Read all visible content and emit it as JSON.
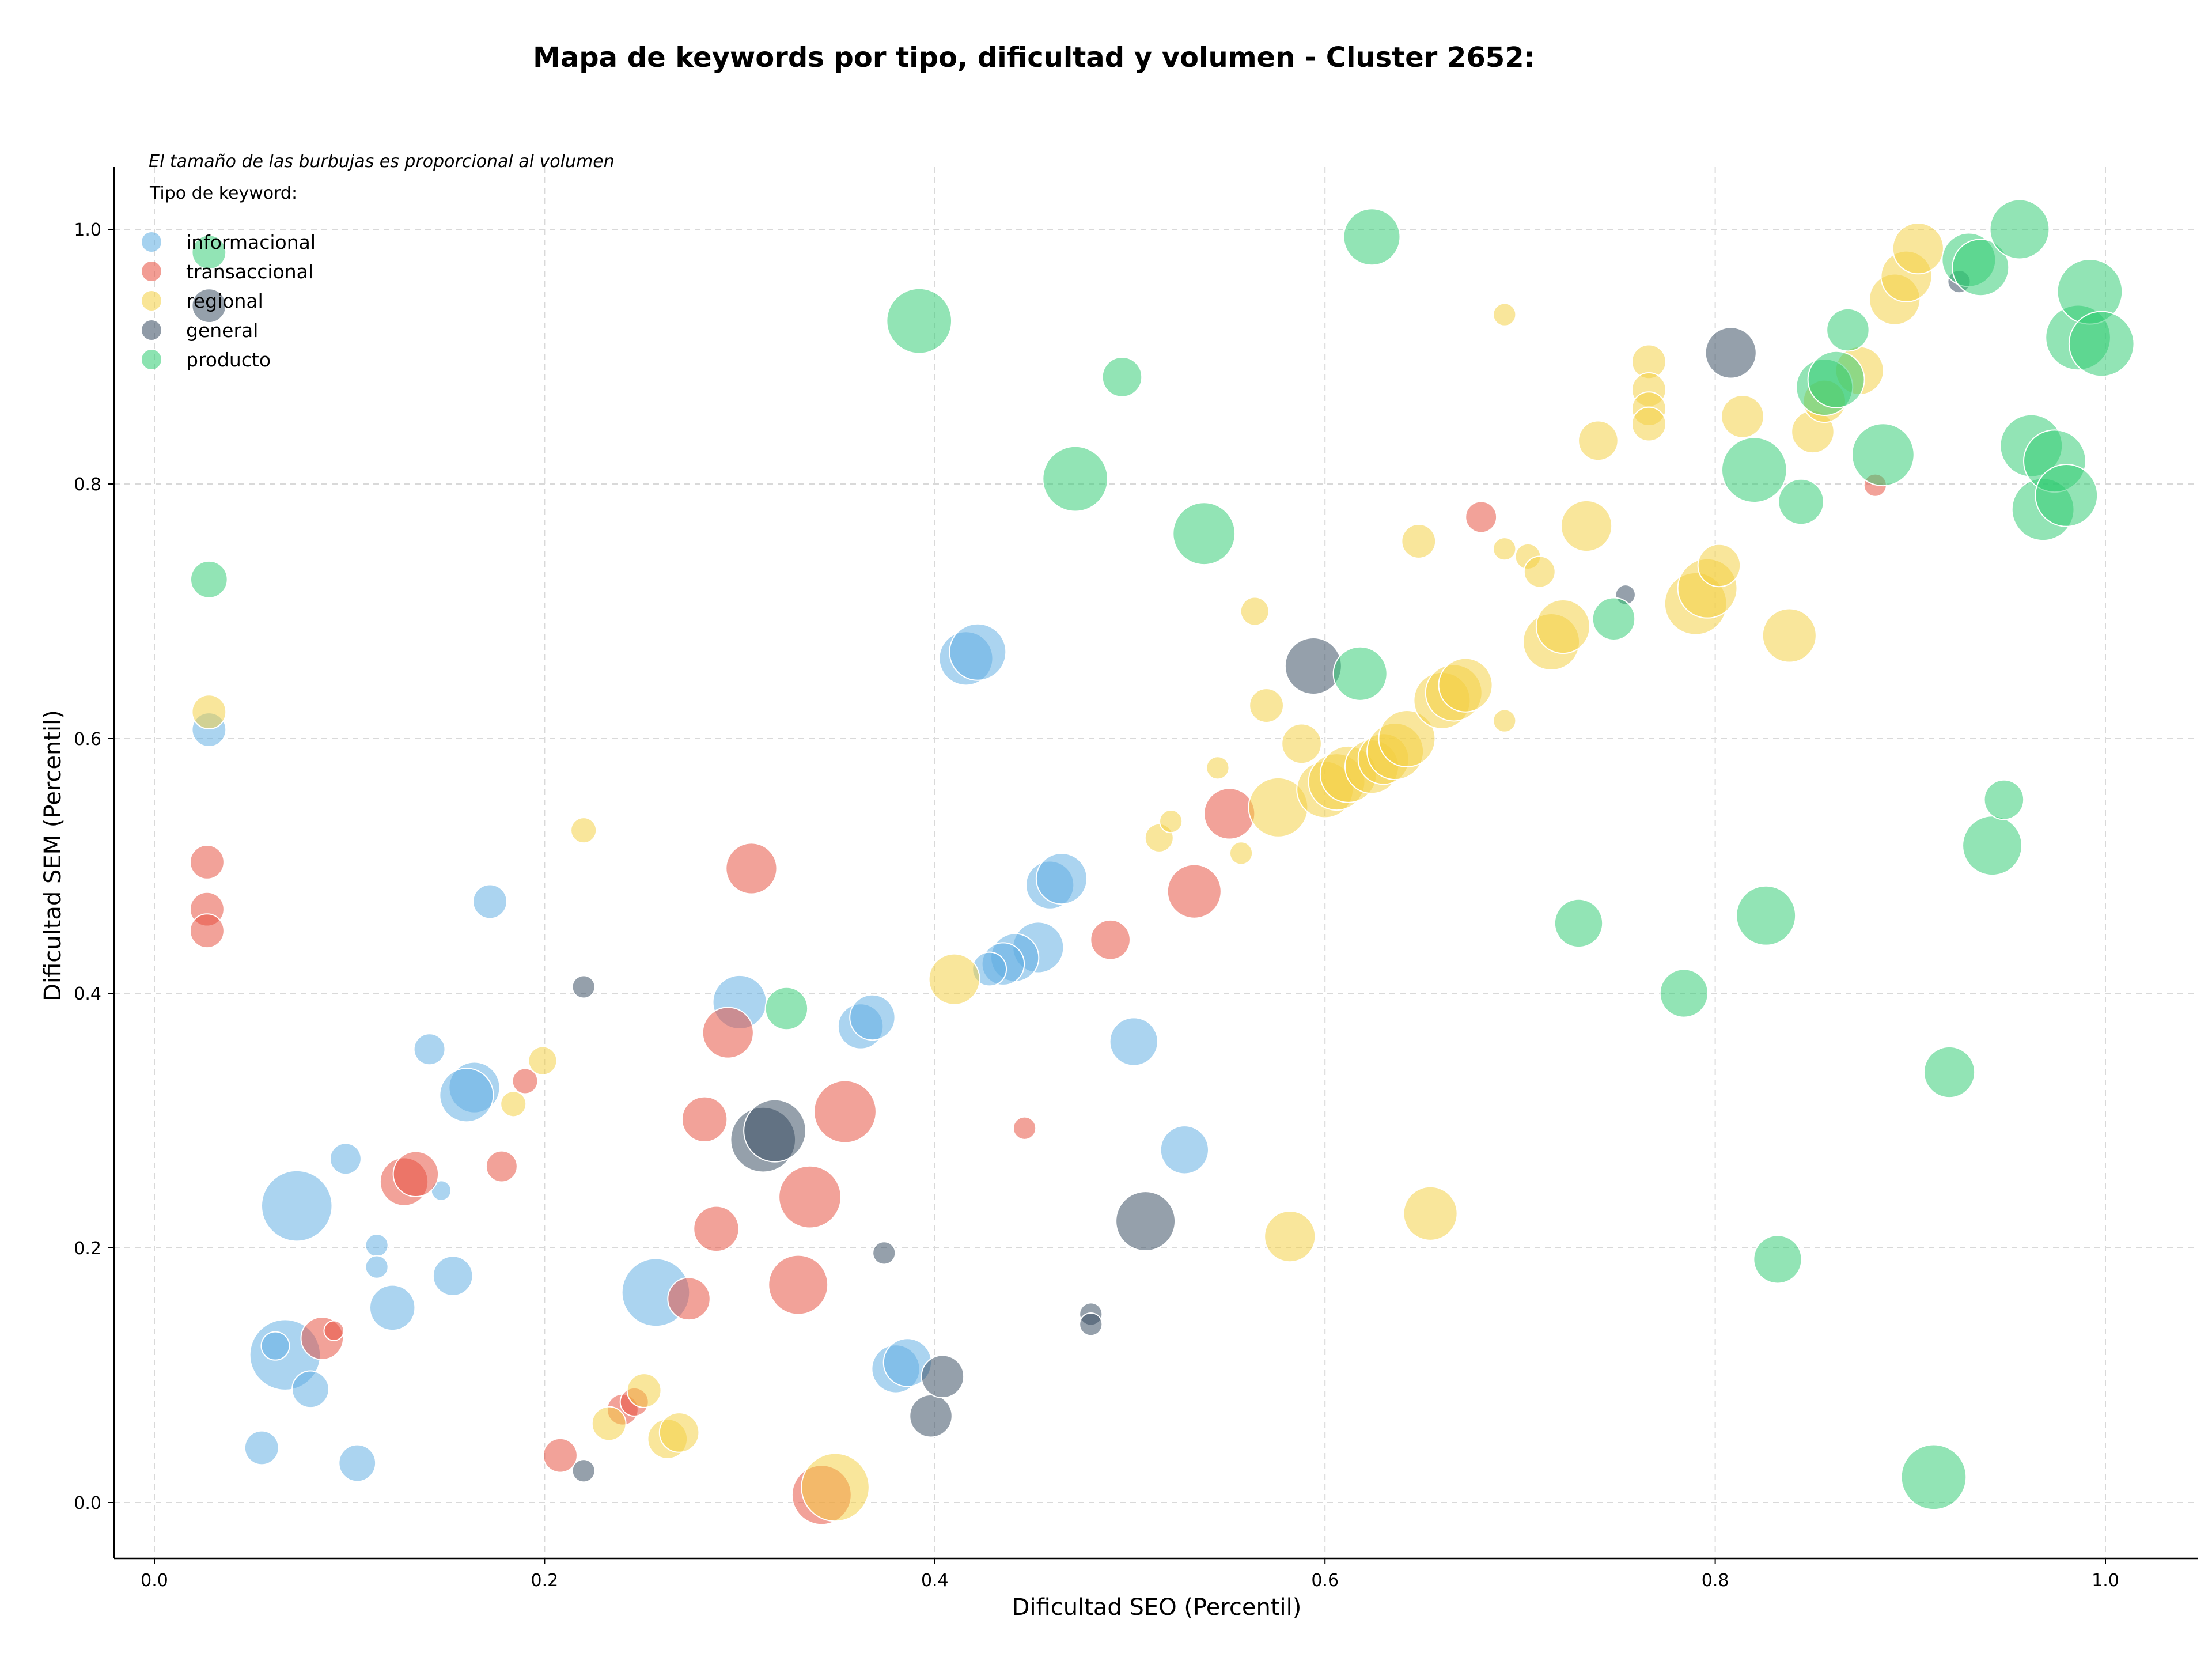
{
  "chart_data": {
    "type": "scatter",
    "title": "Mapa de keywords por tipo, dificultad y volumen - Cluster 2652:",
    "xlabel": "Dificultad SEO (Percentil)",
    "ylabel": "Dificultad SEM (Percentil)",
    "xlim": [
      -0.02,
      1.05
    ],
    "ylim": [
      -0.045,
      1.05
    ],
    "xticks": [
      "0.0",
      "0.2",
      "0.4",
      "0.6",
      "0.8",
      "1.0"
    ],
    "yticks": [
      "0.0",
      "0.2",
      "0.4",
      "0.6",
      "0.8",
      "1.0"
    ],
    "grid": true,
    "note": "El tamaño de las burbujas es proporcional al volumen",
    "legend": {
      "title": "Tipo de keyword:",
      "placement": "top-left",
      "entries": [
        {
          "name": "informacional",
          "color": "#5DADE2"
        },
        {
          "name": "transaccional",
          "color": "#E74C3C"
        },
        {
          "name": "regional",
          "color": "#F4D03F"
        },
        {
          "name": "general",
          "color": "#34495E"
        },
        {
          "name": "producto",
          "color": "#2ECC71"
        }
      ]
    },
    "series": [
      {
        "name": "informacional",
        "color": "#5DADE2",
        "points": [
          [
            0.028,
            0.607,
            12
          ],
          [
            0.172,
            0.472,
            12
          ],
          [
            0.141,
            0.356,
            11
          ],
          [
            0.164,
            0.326,
            18
          ],
          [
            0.16,
            0.32,
            19
          ],
          [
            0.098,
            0.27,
            11
          ],
          [
            0.147,
            0.245,
            7
          ],
          [
            0.073,
            0.233,
            25
          ],
          [
            0.114,
            0.202,
            8
          ],
          [
            0.114,
            0.185,
            8
          ],
          [
            0.122,
            0.153,
            16
          ],
          [
            0.153,
            0.178,
            14
          ],
          [
            0.067,
            0.116,
            25
          ],
          [
            0.062,
            0.123,
            10
          ],
          [
            0.08,
            0.089,
            13
          ],
          [
            0.055,
            0.043,
            12
          ],
          [
            0.104,
            0.031,
            13
          ],
          [
            0.257,
            0.165,
            24
          ],
          [
            0.3,
            0.393,
            19
          ],
          [
            0.362,
            0.374,
            16
          ],
          [
            0.368,
            0.381,
            16
          ],
          [
            0.416,
            0.663,
            19
          ],
          [
            0.422,
            0.668,
            20
          ],
          [
            0.459,
            0.485,
            17
          ],
          [
            0.465,
            0.49,
            18
          ],
          [
            0.453,
            0.436,
            18
          ],
          [
            0.441,
            0.428,
            17
          ],
          [
            0.435,
            0.423,
            15
          ],
          [
            0.428,
            0.419,
            12
          ],
          [
            0.502,
            0.362,
            17
          ],
          [
            0.528,
            0.277,
            17
          ],
          [
            0.38,
            0.105,
            17
          ],
          [
            0.386,
            0.11,
            17
          ]
        ]
      },
      {
        "name": "transaccional",
        "color": "#E74C3C",
        "points": [
          [
            0.027,
            0.503,
            12
          ],
          [
            0.027,
            0.466,
            12
          ],
          [
            0.027,
            0.449,
            12
          ],
          [
            0.19,
            0.331,
            9
          ],
          [
            0.178,
            0.264,
            11
          ],
          [
            0.128,
            0.252,
            17
          ],
          [
            0.134,
            0.258,
            16
          ],
          [
            0.086,
            0.129,
            15
          ],
          [
            0.092,
            0.135,
            7
          ],
          [
            0.208,
            0.037,
            12
          ],
          [
            0.24,
            0.073,
            11
          ],
          [
            0.246,
            0.079,
            10
          ],
          [
            0.274,
            0.16,
            15
          ],
          [
            0.282,
            0.301,
            16
          ],
          [
            0.288,
            0.215,
            16
          ],
          [
            0.294,
            0.369,
            18
          ],
          [
            0.306,
            0.498,
            18
          ],
          [
            0.33,
            0.171,
            21
          ],
          [
            0.336,
            0.24,
            22
          ],
          [
            0.354,
            0.307,
            22
          ],
          [
            0.342,
            0.006,
            21
          ],
          [
            0.446,
            0.294,
            8
          ],
          [
            0.49,
            0.442,
            14
          ],
          [
            0.533,
            0.48,
            19
          ],
          [
            0.551,
            0.541,
            18
          ],
          [
            0.68,
            0.774,
            11
          ],
          [
            0.882,
            0.799,
            8
          ]
        ]
      },
      {
        "name": "regional",
        "color": "#F4D03F",
        "points": [
          [
            0.028,
            0.621,
            12
          ],
          [
            0.22,
            0.528,
            9
          ],
          [
            0.199,
            0.347,
            10
          ],
          [
            0.184,
            0.313,
            9
          ],
          [
            0.233,
            0.062,
            12
          ],
          [
            0.251,
            0.088,
            12
          ],
          [
            0.263,
            0.05,
            14
          ],
          [
            0.269,
            0.055,
            14
          ],
          [
            0.349,
            0.012,
            24
          ],
          [
            0.41,
            0.411,
            18
          ],
          [
            0.515,
            0.522,
            10
          ],
          [
            0.521,
            0.535,
            8
          ],
          [
            0.545,
            0.577,
            8
          ],
          [
            0.557,
            0.51,
            8
          ],
          [
            0.564,
            0.7,
            10
          ],
          [
            0.57,
            0.626,
            12
          ],
          [
            0.576,
            0.546,
            21
          ],
          [
            0.582,
            0.209,
            18
          ],
          [
            0.588,
            0.596,
            14
          ],
          [
            0.6,
            0.56,
            20
          ],
          [
            0.606,
            0.566,
            20
          ],
          [
            0.612,
            0.572,
            20
          ],
          [
            0.624,
            0.578,
            19
          ],
          [
            0.63,
            0.584,
            18
          ],
          [
            0.636,
            0.59,
            20
          ],
          [
            0.642,
            0.6,
            20
          ],
          [
            0.654,
            0.227,
            19
          ],
          [
            0.648,
            0.755,
            12
          ],
          [
            0.66,
            0.63,
            20
          ],
          [
            0.666,
            0.636,
            20
          ],
          [
            0.672,
            0.642,
            19
          ],
          [
            0.692,
            0.933,
            8
          ],
          [
            0.692,
            0.749,
            8
          ],
          [
            0.692,
            0.614,
            8
          ],
          [
            0.704,
            0.743,
            9
          ],
          [
            0.71,
            0.731,
            11
          ],
          [
            0.716,
            0.676,
            20
          ],
          [
            0.722,
            0.688,
            19
          ],
          [
            0.734,
            0.767,
            18
          ],
          [
            0.74,
            0.834,
            14
          ],
          [
            0.766,
            0.896,
            12
          ],
          [
            0.766,
            0.874,
            12
          ],
          [
            0.766,
            0.859,
            12
          ],
          [
            0.766,
            0.847,
            12
          ],
          [
            0.79,
            0.706,
            22
          ],
          [
            0.796,
            0.718,
            21
          ],
          [
            0.802,
            0.736,
            15
          ],
          [
            0.814,
            0.853,
            15
          ],
          [
            0.838,
            0.681,
            19
          ],
          [
            0.85,
            0.841,
            15
          ],
          [
            0.856,
            0.865,
            15
          ],
          [
            0.874,
            0.889,
            17
          ],
          [
            0.892,
            0.945,
            18
          ],
          [
            0.898,
            0.963,
            18
          ],
          [
            0.904,
            0.985,
            18
          ]
        ]
      },
      {
        "name": "general",
        "color": "#34495E",
        "points": [
          [
            0.028,
            0.94,
            12
          ],
          [
            0.22,
            0.405,
            8
          ],
          [
            0.22,
            0.025,
            8
          ],
          [
            0.312,
            0.285,
            23
          ],
          [
            0.318,
            0.292,
            22
          ],
          [
            0.374,
            0.196,
            8
          ],
          [
            0.398,
            0.068,
            15
          ],
          [
            0.404,
            0.099,
            15
          ],
          [
            0.48,
            0.148,
            8
          ],
          [
            0.48,
            0.14,
            8
          ],
          [
            0.508,
            0.221,
            21
          ],
          [
            0.594,
            0.657,
            20
          ],
          [
            0.754,
            0.713,
            7
          ],
          [
            0.808,
            0.903,
            18
          ],
          [
            0.925,
            0.959,
            8
          ]
        ]
      },
      {
        "name": "producto",
        "color": "#2ECC71",
        "points": [
          [
            0.028,
            0.982,
            12
          ],
          [
            0.028,
            0.725,
            13
          ],
          [
            0.324,
            0.388,
            15
          ],
          [
            0.392,
            0.928,
            23
          ],
          [
            0.472,
            0.804,
            23
          ],
          [
            0.496,
            0.884,
            14
          ],
          [
            0.538,
            0.761,
            22
          ],
          [
            0.618,
            0.651,
            19
          ],
          [
            0.624,
            0.994,
            20
          ],
          [
            0.73,
            0.455,
            17
          ],
          [
            0.748,
            0.694,
            15
          ],
          [
            0.784,
            0.4,
            17
          ],
          [
            0.82,
            0.811,
            23
          ],
          [
            0.826,
            0.461,
            21
          ],
          [
            0.832,
            0.191,
            17
          ],
          [
            0.844,
            0.786,
            16
          ],
          [
            0.856,
            0.876,
            20
          ],
          [
            0.862,
            0.882,
            20
          ],
          [
            0.868,
            0.921,
            15
          ],
          [
            0.886,
            0.823,
            22
          ],
          [
            0.912,
            0.02,
            23
          ],
          [
            0.92,
            0.338,
            18
          ],
          [
            0.93,
            0.976,
            19
          ],
          [
            0.936,
            0.97,
            20
          ],
          [
            0.942,
            0.516,
            21
          ],
          [
            0.948,
            0.552,
            14
          ],
          [
            0.956,
            1.0,
            21
          ],
          [
            0.962,
            0.83,
            22
          ],
          [
            0.968,
            0.78,
            22
          ],
          [
            0.974,
            0.818,
            22
          ],
          [
            0.98,
            0.791,
            22
          ],
          [
            0.986,
            0.915,
            23
          ],
          [
            0.992,
            0.951,
            23
          ],
          [
            0.998,
            0.91,
            23
          ]
        ]
      }
    ]
  }
}
